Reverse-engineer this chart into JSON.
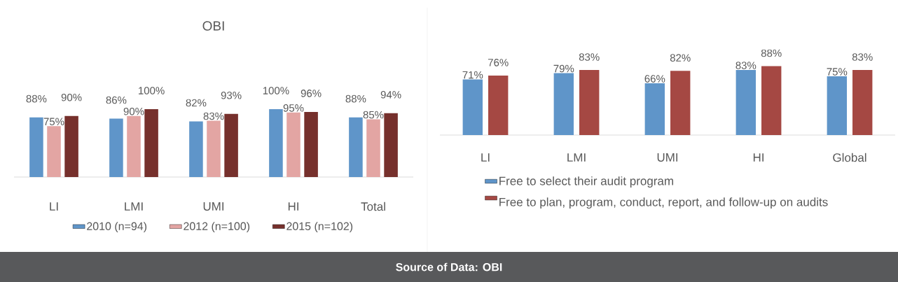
{
  "chart_data": [
    {
      "type": "bar",
      "title": "OBI",
      "categories": [
        "LI",
        "LMI",
        "UMI",
        "HI",
        "Total"
      ],
      "legend": "bottom",
      "series": [
        {
          "name": "2010 (n=94)",
          "color": "#5f95c9",
          "values": [
            88,
            86,
            82,
            100,
            88
          ],
          "value_labels": [
            "88%",
            "86%",
            "82%",
            "100%",
            "88%"
          ]
        },
        {
          "name": "2012 (n=100)",
          "color": "#e3a5a3",
          "values": [
            75,
            90,
            83,
            95,
            85
          ],
          "value_labels": [
            "75%",
            "90%",
            "83%",
            "95%",
            "85%"
          ]
        },
        {
          "name": "2015 (n=102)",
          "color": "#76302c",
          "values": [
            90,
            100,
            93,
            96,
            94
          ],
          "value_labels": [
            "90%",
            "100%",
            "93%",
            "96%",
            "94%"
          ]
        }
      ]
    },
    {
      "type": "bar",
      "categories": [
        "LI",
        "LMI",
        "UMI",
        "HI",
        "Global"
      ],
      "legend": "bottom",
      "annotations": [
        "Source of Data: OBI"
      ],
      "series": [
        {
          "name": "Free to select their audit program",
          "color": "#5f95c9",
          "values": [
            71,
            79,
            66,
            83,
            75
          ],
          "value_labels": [
            "71%",
            "79%",
            "66%",
            "83%",
            "75%"
          ]
        },
        {
          "name": "Free to plan, program, conduct, report, and follow-up on audits",
          "color": "#a54843",
          "values": [
            76,
            83,
            82,
            88,
            83
          ],
          "value_labels": [
            "76%",
            "83%",
            "82%",
            "88%",
            "83%"
          ]
        }
      ]
    }
  ]
}
